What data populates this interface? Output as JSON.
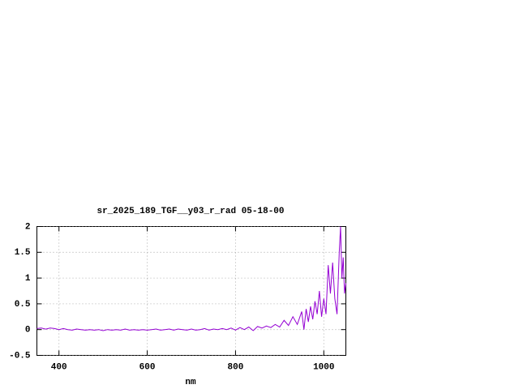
{
  "chart_data": {
    "type": "line",
    "title": "sr_2025_189_TGF__y03_r_rad 05-18-00",
    "x_label": "nm",
    "x": [
      350,
      360,
      370,
      380,
      390,
      400,
      410,
      420,
      430,
      440,
      450,
      460,
      470,
      480,
      490,
      500,
      510,
      520,
      530,
      540,
      550,
      560,
      570,
      580,
      590,
      600,
      610,
      620,
      630,
      640,
      650,
      660,
      670,
      680,
      690,
      700,
      710,
      720,
      730,
      740,
      750,
      760,
      770,
      780,
      790,
      800,
      810,
      820,
      830,
      840,
      850,
      860,
      870,
      880,
      890,
      900,
      910,
      920,
      930,
      940,
      950,
      955,
      960,
      965,
      970,
      975,
      980,
      985,
      990,
      995,
      1000,
      1005,
      1010,
      1015,
      1020,
      1025,
      1030,
      1035,
      1038,
      1041,
      1044,
      1047,
      1050
    ],
    "values": [
      0.02,
      0.03,
      0.01,
      0.03,
      0.02,
      0.0,
      0.02,
      0.0,
      -0.01,
      0.01,
      0.0,
      -0.01,
      0.0,
      -0.01,
      0.0,
      -0.02,
      0.0,
      -0.01,
      0.0,
      -0.01,
      0.01,
      -0.01,
      0.0,
      -0.01,
      0.0,
      -0.01,
      0.0,
      0.01,
      -0.01,
      0.0,
      0.01,
      -0.01,
      0.01,
      0.0,
      -0.01,
      0.01,
      -0.01,
      0.0,
      0.02,
      -0.01,
      0.01,
      0.0,
      0.02,
      0.0,
      0.03,
      -0.01,
      0.04,
      0.0,
      0.05,
      -0.02,
      0.06,
      0.03,
      0.07,
      0.04,
      0.1,
      0.05,
      0.18,
      0.08,
      0.25,
      0.1,
      0.35,
      0.0,
      0.4,
      0.15,
      0.45,
      0.2,
      0.55,
      0.3,
      0.75,
      0.25,
      0.6,
      0.3,
      1.25,
      0.7,
      1.3,
      0.6,
      0.3,
      1.5,
      2.0,
      1.0,
      1.4,
      0.7,
      0.9
    ],
    "color": "#9400d3",
    "xlim": [
      350,
      1050
    ],
    "xticks": [
      400,
      600,
      800,
      1000
    ],
    "ylim": [
      -0.5,
      2
    ],
    "yticks": [
      -0.5,
      0,
      0.5,
      1,
      1.5,
      2
    ],
    "grid": true
  }
}
